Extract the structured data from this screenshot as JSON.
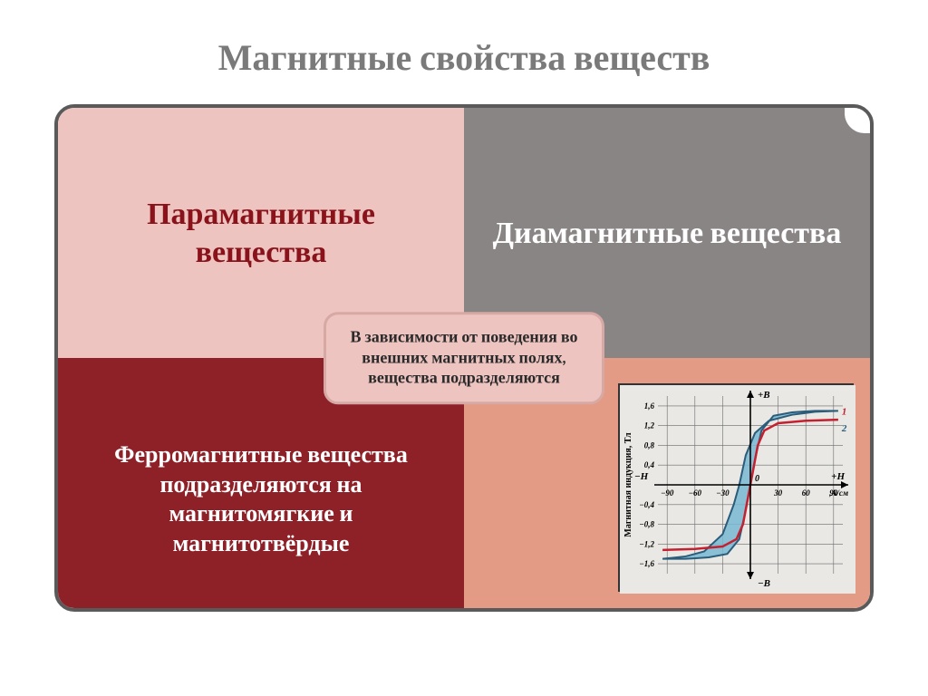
{
  "title": "Магнитные свойства веществ",
  "cells": {
    "top_left": {
      "text": "Парамагнитные вещества",
      "bg": "#eec4c0",
      "fg": "#8a131b",
      "fontsize": 34
    },
    "top_right": {
      "text": "Диамагнитные вещества",
      "bg": "#8a8585",
      "fg": "#ffffff",
      "fontsize": 34
    },
    "bottom_left": {
      "text": "Ферромагнитные вещества подразделяются на магнитомягкие и магнитотвёрдые",
      "bg": "#8e2028",
      "fg": "#ffffff",
      "fontsize": 26
    },
    "bottom_right": {
      "bg": "#e49b86"
    }
  },
  "center_badge": {
    "text": "В зависимости от поведения во внешних магнитных полях, вещества подразделяются",
    "bg": "#eec4c0",
    "border": "#d7a9a4",
    "fg": "#2a2a2a",
    "fontsize": 18
  },
  "chart": {
    "type": "hysteresis-loop",
    "background": "#e9e8e4",
    "grid_color": "#6a6a6a",
    "axis_color": "#000000",
    "loop_fill": "#79b8d4",
    "loop_stroke": "#2b5c7a",
    "loop_stroke_width": 2,
    "curve2_color": "#c42030",
    "curve2_width": 2.5,
    "x_axis": {
      "label_neg": "−H",
      "label_pos": "+H",
      "ticks": [
        -90,
        -60,
        -30,
        30,
        60,
        90
      ],
      "units": ",А/см",
      "range": [
        -100,
        100
      ]
    },
    "y_axis": {
      "label_pos": "+B",
      "label_neg": "−B",
      "side_label": "Магнитная индукция, Тл",
      "ticks": [
        -1.6,
        -1.2,
        -0.8,
        -0.4,
        0.4,
        0.8,
        1.2,
        1.6
      ],
      "range": [
        -1.8,
        1.8
      ]
    },
    "markers": {
      "1": "1",
      "2": "2"
    },
    "origin_label": "0",
    "loop1_points": [
      [
        -95,
        -1.5
      ],
      [
        -85,
        -1.48
      ],
      [
        -70,
        -1.45
      ],
      [
        -50,
        -1.35
      ],
      [
        -30,
        -1.0
      ],
      [
        -18,
        -0.4
      ],
      [
        -12,
        0.0
      ],
      [
        -5,
        0.6
      ],
      [
        5,
        1.05
      ],
      [
        20,
        1.3
      ],
      [
        45,
        1.42
      ],
      [
        70,
        1.48
      ],
      [
        95,
        1.5
      ],
      [
        95,
        1.5
      ],
      [
        70,
        1.5
      ],
      [
        45,
        1.47
      ],
      [
        25,
        1.4
      ],
      [
        12,
        1.1
      ],
      [
        6,
        0.6
      ],
      [
        0,
        0.0
      ],
      [
        -6,
        -0.6
      ],
      [
        -12,
        -1.1
      ],
      [
        -25,
        -1.4
      ],
      [
        -45,
        -1.47
      ],
      [
        -70,
        -1.5
      ],
      [
        -95,
        -1.5
      ]
    ],
    "loop1_upper": [
      [
        -95,
        -1.5
      ],
      [
        -70,
        -1.5
      ],
      [
        -45,
        -1.47
      ],
      [
        -25,
        -1.4
      ],
      [
        -12,
        -1.1
      ],
      [
        -6,
        -0.6
      ],
      [
        0,
        0.0
      ],
      [
        6,
        0.6
      ],
      [
        12,
        1.1
      ],
      [
        25,
        1.4
      ],
      [
        45,
        1.47
      ],
      [
        70,
        1.5
      ],
      [
        95,
        1.5
      ]
    ],
    "loop1_lower": [
      [
        95,
        1.5
      ],
      [
        70,
        1.48
      ],
      [
        45,
        1.42
      ],
      [
        20,
        1.3
      ],
      [
        5,
        1.05
      ],
      [
        -5,
        0.6
      ],
      [
        -12,
        0.0
      ],
      [
        -18,
        -0.4
      ],
      [
        -30,
        -1.0
      ],
      [
        -50,
        -1.35
      ],
      [
        -70,
        -1.45
      ],
      [
        -85,
        -1.48
      ],
      [
        -95,
        -1.5
      ]
    ],
    "curve2_points": [
      [
        -95,
        -1.32
      ],
      [
        -60,
        -1.3
      ],
      [
        -30,
        -1.25
      ],
      [
        -15,
        -1.1
      ],
      [
        -8,
        -0.8
      ],
      [
        -4,
        -0.4
      ],
      [
        0,
        0
      ],
      [
        4,
        0.4
      ],
      [
        8,
        0.8
      ],
      [
        15,
        1.1
      ],
      [
        30,
        1.25
      ],
      [
        60,
        1.3
      ],
      [
        95,
        1.32
      ]
    ]
  },
  "frame": {
    "border_color": "#5a5a5a",
    "radius": 22
  }
}
